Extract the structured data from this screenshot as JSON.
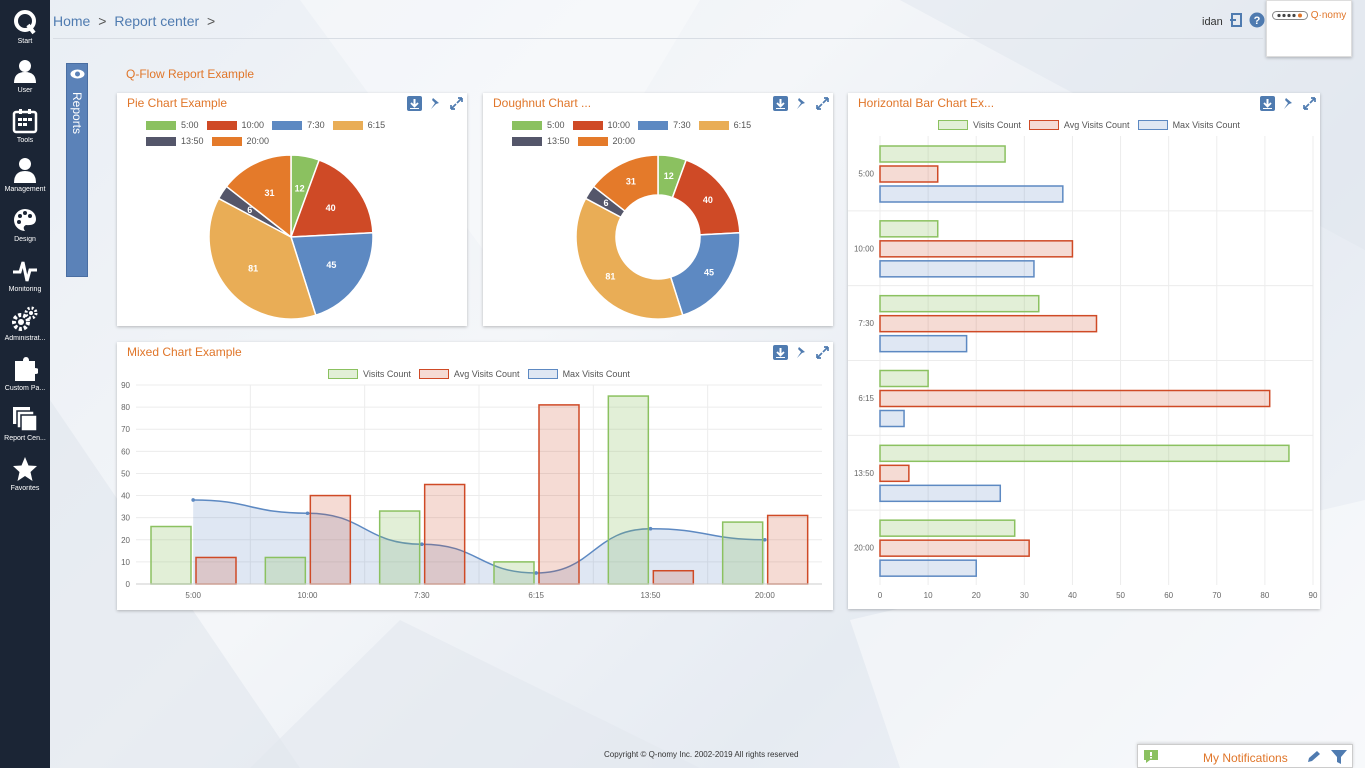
{
  "sidebar": {
    "items": [
      {
        "label": "Start",
        "icon": "q-logo-icon"
      },
      {
        "label": "User",
        "icon": "user-icon"
      },
      {
        "label": "Tools",
        "icon": "tools-icon"
      },
      {
        "label": "Management",
        "icon": "management-icon"
      },
      {
        "label": "Design",
        "icon": "palette-icon"
      },
      {
        "label": "Monitoring",
        "icon": "pulse-icon"
      },
      {
        "label": "Administrat...",
        "icon": "gears-icon"
      },
      {
        "label": "Custom Pa...",
        "icon": "puzzle-icon"
      },
      {
        "label": "Report Cen...",
        "icon": "reports-icon"
      },
      {
        "label": "Favorites",
        "icon": "star-icon"
      }
    ]
  },
  "header": {
    "breadcrumb": [
      "Home",
      "Report center"
    ],
    "separator": ">",
    "username": "idan",
    "logo_text": "Q·nomy"
  },
  "reports_tab": {
    "label": "Reports"
  },
  "report": {
    "title": "Q-Flow Report Example"
  },
  "colors": {
    "green": "#8bc160",
    "red": "#cf4a26",
    "blue": "#5d89c2",
    "orange": "#e9ad56",
    "dark": "#54566a",
    "amber": "#e47a2a",
    "title": "#e0762a",
    "sidebar": "#1b2535"
  },
  "panels": {
    "pie": {
      "title": "Pie Chart Example"
    },
    "doughnut": {
      "title": "Doughnut Chart ..."
    },
    "hbar": {
      "title": "Horizontal Bar Chart Ex..."
    },
    "mixed": {
      "title": "Mixed Chart Example"
    }
  },
  "chart_data": [
    {
      "type": "pie",
      "categories": [
        "5:00",
        "10:00",
        "7:30",
        "6:15",
        "13:50",
        "20:00"
      ],
      "values": [
        12,
        40,
        45,
        81,
        6,
        31
      ]
    },
    {
      "type": "pie",
      "doughnut": true,
      "categories": [
        "5:00",
        "10:00",
        "7:30",
        "6:15",
        "13:50",
        "20:00"
      ],
      "values": [
        12,
        40,
        45,
        81,
        6,
        31
      ]
    },
    {
      "type": "bar",
      "orientation": "horizontal",
      "categories": [
        "5:00",
        "10:00",
        "7:30",
        "6:15",
        "13:50",
        "20:00"
      ],
      "series": [
        {
          "name": "Visits Count",
          "values": [
            26,
            12,
            33,
            10,
            85,
            28
          ]
        },
        {
          "name": "Avg Visits Count",
          "values": [
            12,
            40,
            45,
            81,
            6,
            31
          ]
        },
        {
          "name": "Max Visits Count",
          "values": [
            38,
            32,
            18,
            5,
            25,
            20
          ]
        }
      ],
      "xlim": [
        0,
        90
      ],
      "xticks": [
        0,
        10,
        20,
        30,
        40,
        50,
        60,
        70,
        80,
        90
      ],
      "legend": "top",
      "grid": true
    },
    {
      "type": "bar",
      "mixed": true,
      "categories": [
        "5:00",
        "10:00",
        "7:30",
        "6:15",
        "13:50",
        "20:00"
      ],
      "series": [
        {
          "name": "Visits Count",
          "type": "bar",
          "values": [
            26,
            12,
            33,
            10,
            85,
            28
          ]
        },
        {
          "name": "Avg Visits Count",
          "type": "bar",
          "values": [
            12,
            40,
            45,
            81,
            6,
            31
          ]
        },
        {
          "name": "Max Visits Count",
          "type": "area",
          "values": [
            38,
            32,
            18,
            5,
            25,
            20
          ]
        }
      ],
      "ylim": [
        0,
        90
      ],
      "yticks": [
        0,
        10,
        20,
        30,
        40,
        50,
        60,
        70,
        80,
        90
      ],
      "legend": "top",
      "grid": true
    }
  ],
  "footer": {
    "copyright": "Copyright © Q-nomy Inc. 2002-2019 All rights reserved"
  },
  "notifications": {
    "label": "My Notifications"
  }
}
